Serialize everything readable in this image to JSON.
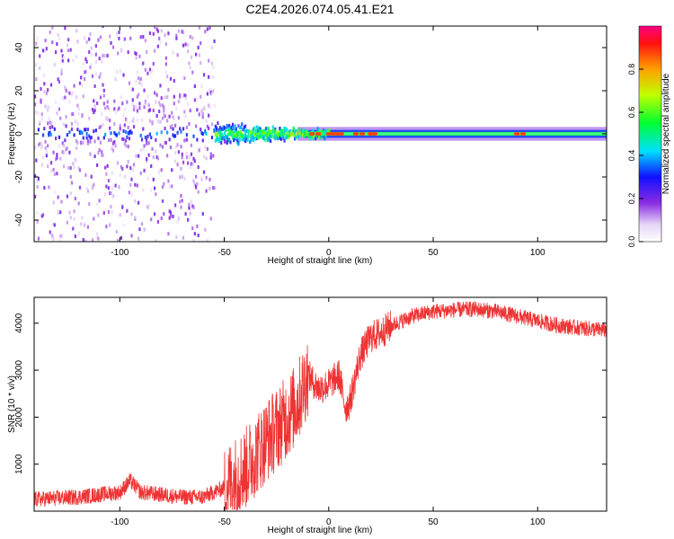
{
  "title": "C2E4.2026.074.05.41.E21",
  "chart_data": [
    {
      "type": "heatmap",
      "xlabel": "Height of straight line (km)",
      "ylabel": "Frequency (Hz)",
      "xlim": [
        -141,
        133
      ],
      "ylim": [
        -50,
        50
      ],
      "x_ticks": [
        -100,
        -50,
        0,
        50,
        100
      ],
      "y_ticks": [
        -40,
        -20,
        0,
        20,
        40
      ],
      "colorbar": {
        "label": "Normalized spectral amplitude",
        "range": [
          0,
          1
        ],
        "ticks": [
          0.0,
          0.2,
          0.4,
          0.6,
          0.8
        ],
        "tick_labels": [
          "0.0",
          "0.2",
          "0.4",
          "0.6",
          "0.8"
        ]
      },
      "description_bands": [
        {
          "x_range": [
            -141,
            -55
          ],
          "freq_spread_hz": 50,
          "level": "low, scattered"
        },
        {
          "x_range": [
            -55,
            -10
          ],
          "freq_spread_hz": 12,
          "level": "medium"
        },
        {
          "x_range": [
            -10,
            133
          ],
          "freq_spread_hz": 3,
          "level": "high, narrow near 0 Hz"
        }
      ]
    },
    {
      "type": "line",
      "xlabel": "Height of straight line (km)",
      "ylabel": "SNR (10 * v/v)",
      "xlim": [
        -141,
        133
      ],
      "ylim": [
        0,
        4550
      ],
      "x_ticks": [
        -100,
        -50,
        0,
        50,
        100
      ],
      "y_ticks": [
        1000,
        2000,
        3000,
        4000
      ],
      "color": "#ee3333",
      "x_keypoints": [
        -141,
        -120,
        -100,
        -95,
        -90,
        -80,
        -70,
        -60,
        -50,
        -40,
        -30,
        -20,
        -15,
        -10,
        -5,
        0,
        5,
        8,
        10,
        15,
        20,
        25,
        30,
        40,
        50,
        60,
        70,
        80,
        90,
        100,
        110,
        120,
        133
      ],
      "y_keypoints": [
        250,
        300,
        400,
        650,
        400,
        350,
        300,
        300,
        500,
        900,
        1500,
        2000,
        2300,
        2900,
        2600,
        2700,
        2900,
        2200,
        2300,
        3300,
        3700,
        3800,
        3950,
        4150,
        4250,
        4280,
        4300,
        4250,
        4150,
        4050,
        3950,
        3900,
        3850
      ]
    }
  ]
}
